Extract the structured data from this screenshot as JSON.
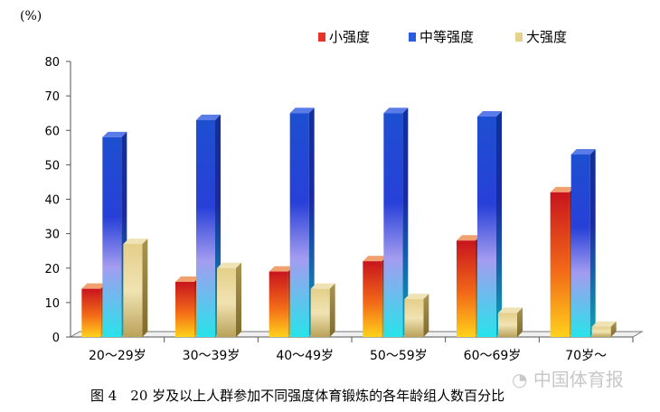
{
  "chart_data": {
    "type": "bar",
    "unit_label": "(%)",
    "categories": [
      "20～29岁",
      "30～39岁",
      "40～49岁",
      "50～59岁",
      "60～69岁",
      "70岁～"
    ],
    "series": [
      {
        "name": "小强度",
        "values": [
          14,
          16,
          19,
          22,
          28,
          42
        ],
        "color": "#e8322a"
      },
      {
        "name": "中等强度",
        "values": [
          58,
          63,
          65,
          65,
          64,
          53
        ],
        "color": "#2a5ce0"
      },
      {
        "name": "大强度",
        "values": [
          27,
          20,
          14,
          11,
          7,
          3
        ],
        "color": "#e6d28c"
      }
    ],
    "ylim": [
      0,
      80
    ],
    "yticks": [
      0,
      10,
      20,
      30,
      40,
      50,
      60,
      70,
      80
    ],
    "legend_position": "top-right",
    "grid": false
  },
  "caption": "图 4　20 岁及以上人群参加不同强度体育锻炼的各年龄组人数百分比",
  "watermark": "中国体育报"
}
